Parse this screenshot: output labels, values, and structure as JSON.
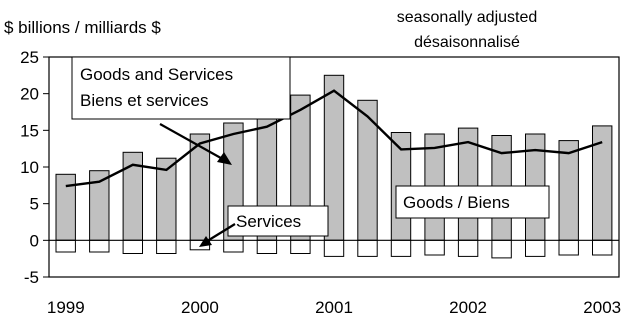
{
  "chart_data": {
    "type": "bar",
    "ylabel": "$ billions / milliards $",
    "note_line1": "seasonally adjusted",
    "note_line2": "désaisonnalisé",
    "ylim": [
      -5,
      25
    ],
    "yticks": [
      25,
      20,
      15,
      10,
      5,
      0,
      -5
    ],
    "x_tick_labels": [
      "1999",
      "2000",
      "2001",
      "2002",
      "2003"
    ],
    "periods": [
      "1999Q1",
      "1999Q2",
      "1999Q3",
      "1999Q4",
      "2000Q1",
      "2000Q2",
      "2000Q3",
      "2000Q4",
      "2001Q1",
      "2001Q2",
      "2001Q3",
      "2001Q4",
      "2002Q1",
      "2002Q2",
      "2002Q3",
      "2002Q4",
      "2003Q1"
    ],
    "series": [
      {
        "name": "Goods / Biens",
        "render": "bar",
        "color": "#c0c0c0",
        "values": [
          9.0,
          9.5,
          12.0,
          11.2,
          14.5,
          16.0,
          17.4,
          19.8,
          22.5,
          19.1,
          14.7,
          14.5,
          15.3,
          14.3,
          14.5,
          13.6,
          15.6
        ]
      },
      {
        "name": "Services",
        "render": "bar",
        "color": "#ffffff",
        "values": [
          -1.6,
          -1.6,
          -1.8,
          -1.8,
          -1.3,
          -1.6,
          -1.8,
          -1.8,
          -2.2,
          -2.2,
          -2.2,
          -2.0,
          -2.2,
          -2.4,
          -2.2,
          -2.0,
          -2.0
        ]
      },
      {
        "name": "Goods and Services Biens et services",
        "render": "line",
        "color": "#000000",
        "values": [
          7.4,
          8.0,
          10.3,
          9.6,
          13.2,
          14.5,
          15.5,
          17.8,
          20.4,
          16.9,
          12.4,
          12.6,
          13.4,
          11.9,
          12.3,
          11.9,
          13.4
        ]
      }
    ],
    "callouts": {
      "total_line1": "Goods and Services",
      "total_line2": "Biens et services",
      "goods": "Goods / Biens",
      "services": "Services"
    },
    "grid": false,
    "legend": "callout labels"
  }
}
